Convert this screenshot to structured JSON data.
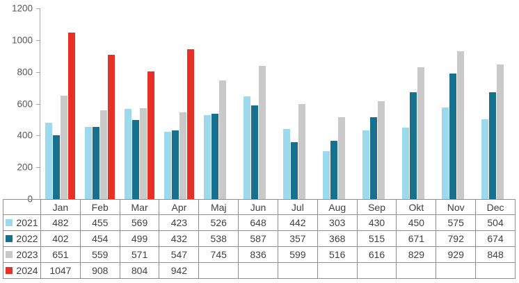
{
  "chart_data": {
    "type": "bar",
    "title": "",
    "xlabel": "",
    "ylabel": "",
    "categories": [
      "Jan",
      "Feb",
      "Mar",
      "Apr",
      "Maj",
      "Jun",
      "Jul",
      "Aug",
      "Sep",
      "Okt",
      "Nov",
      "Dec"
    ],
    "series": [
      {
        "name": "2021",
        "color": "#9cd9ec",
        "values": [
          482,
          455,
          569,
          423,
          526,
          648,
          442,
          303,
          430,
          450,
          575,
          504
        ]
      },
      {
        "name": "2022",
        "color": "#17708e",
        "values": [
          402,
          454,
          499,
          432,
          538,
          587,
          357,
          368,
          515,
          671,
          792,
          674
        ]
      },
      {
        "name": "2023",
        "color": "#c9c9c9",
        "values": [
          651,
          559,
          571,
          547,
          745,
          836,
          599,
          516,
          616,
          829,
          929,
          848
        ]
      },
      {
        "name": "2024",
        "color": "#e73127",
        "values": [
          1047,
          908,
          804,
          942,
          null,
          null,
          null,
          null,
          null,
          null,
          null,
          null
        ]
      }
    ],
    "ylim": [
      0,
      1200
    ],
    "yticks": [
      0,
      200,
      400,
      600,
      800,
      1000,
      1200
    ],
    "grid": false,
    "legend_position": "table-left-column",
    "colors": {
      "axis_line": "#a6a6a6",
      "table_border": "#8f8f8f",
      "tick_text": "#595959",
      "table_text": "#404040",
      "background": "#ffffff"
    }
  }
}
